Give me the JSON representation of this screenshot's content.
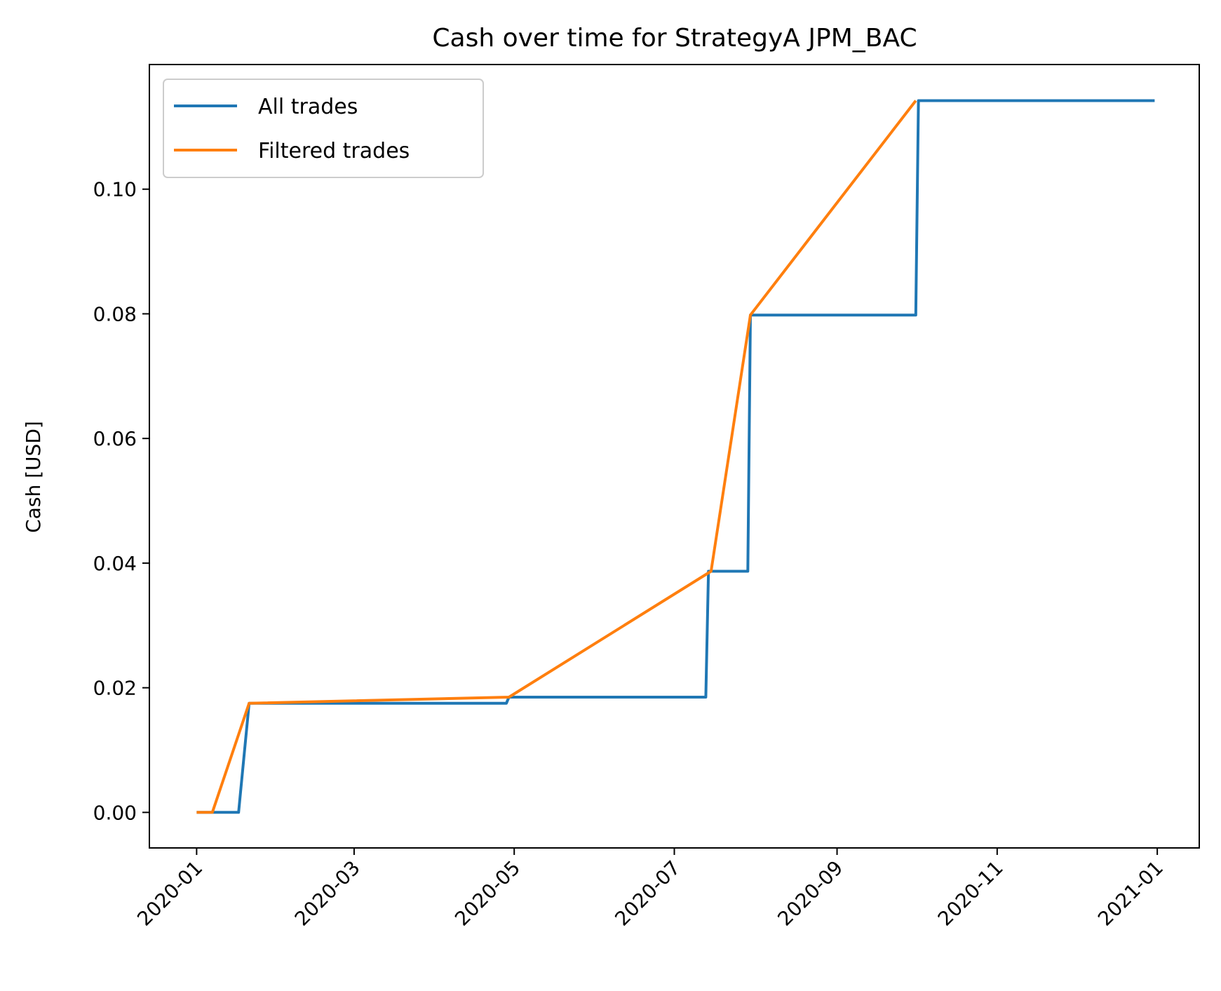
{
  "chart_data": {
    "type": "line",
    "title": "Cash over time for StrategyA JPM_BAC",
    "xlabel": "",
    "ylabel": "Cash [USD]",
    "x_type": "date",
    "xlim": [
      "2019-12-14",
      "2021-01-17"
    ],
    "ylim": [
      -0.0057,
      0.12
    ],
    "x_ticks": [
      "2020-01",
      "2020-03",
      "2020-05",
      "2020-07",
      "2020-09",
      "2020-11",
      "2021-01"
    ],
    "x_tick_dates": [
      "2020-01-01",
      "2020-03-01",
      "2020-05-01",
      "2020-07-01",
      "2020-09-01",
      "2020-11-01",
      "2021-01-01"
    ],
    "y_ticks": [
      0.0,
      0.02,
      0.04,
      0.06,
      0.08,
      0.1
    ],
    "y_tick_labels": [
      "0.00",
      "0.02",
      "0.04",
      "0.06",
      "0.08",
      "0.10"
    ],
    "grid": false,
    "legend": "upper-left",
    "series": [
      {
        "name": "All trades",
        "color": "#1f77b4",
        "x": [
          "2020-01-01",
          "2020-01-17",
          "2020-01-21",
          "2020-04-28",
          "2020-04-29",
          "2020-07-13",
          "2020-07-14",
          "2020-07-29",
          "2020-07-30",
          "2020-10-01",
          "2020-10-02",
          "2020-12-31"
        ],
        "y": [
          0.0,
          0.0,
          0.0175,
          0.0175,
          0.0185,
          0.0185,
          0.0387,
          0.0387,
          0.0798,
          0.0798,
          0.1142,
          0.1142
        ]
      },
      {
        "name": "Filtered trades",
        "color": "#ff7f0e",
        "x": [
          "2020-01-01",
          "2020-01-07",
          "2020-01-21",
          "2020-04-29",
          "2020-07-15",
          "2020-07-30",
          "2020-10-01"
        ],
        "y": [
          0.0,
          0.0,
          0.0175,
          0.0185,
          0.0387,
          0.0798,
          0.1142
        ]
      }
    ]
  }
}
